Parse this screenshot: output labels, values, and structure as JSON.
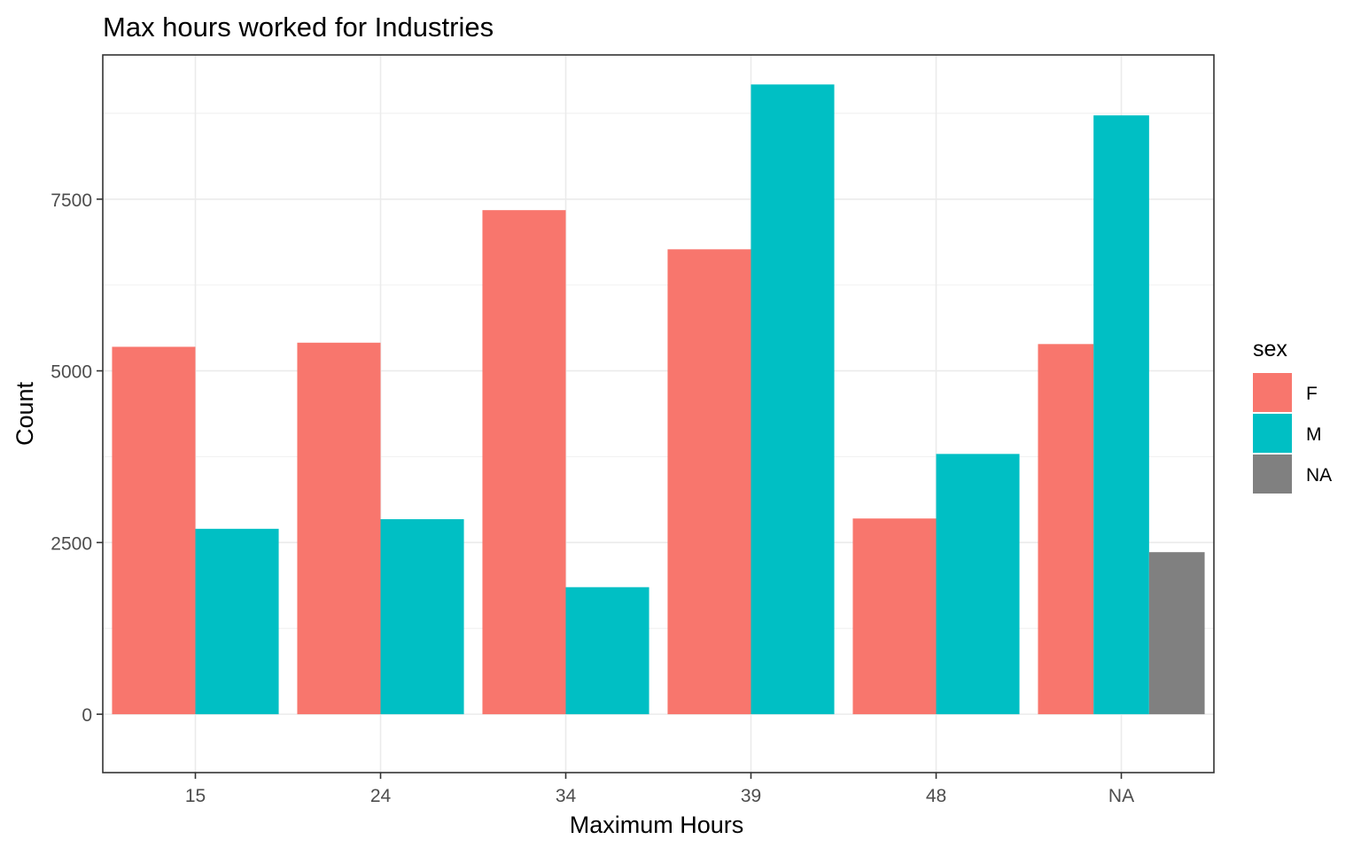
{
  "chart_data": {
    "type": "bar",
    "title": "Max hours worked for Industries",
    "xlabel": "Maximum Hours",
    "ylabel": "Count",
    "categories": [
      "15",
      "24",
      "34",
      "39",
      "48",
      "NA"
    ],
    "ylim": [
      -850,
      9600
    ],
    "yticks": [
      0,
      2500,
      5000,
      7500
    ],
    "grid": true,
    "legend": {
      "title": "sex",
      "position": "right"
    },
    "series": [
      {
        "name": "F",
        "color": "#F8766D",
        "values": [
          5350,
          5410,
          7340,
          6770,
          2850,
          5390
        ]
      },
      {
        "name": "M",
        "color": "#00BFC4",
        "values": [
          2700,
          2840,
          1850,
          9170,
          3790,
          8720
        ]
      },
      {
        "name": "NA",
        "color": "#808080",
        "values": [
          null,
          null,
          null,
          null,
          null,
          2360
        ]
      }
    ]
  }
}
